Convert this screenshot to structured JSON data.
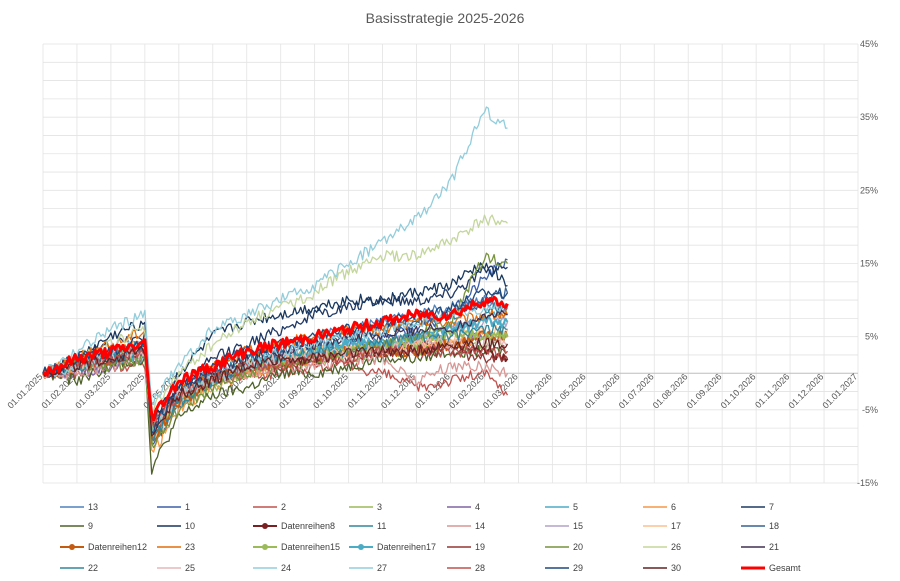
{
  "chart_data": {
    "type": "line",
    "title": "Basisstrategie 2025-2026",
    "x_axis": {
      "ticks": [
        "01.01.2025",
        "01.02.2025",
        "01.03.2025",
        "01.04.2025",
        "01.05.2025",
        "01.06.2025",
        "01.07.2025",
        "01.08.2025",
        "01.09.2025",
        "01.10.2025",
        "01.11.2025",
        "01.12.2025",
        "01.01.2026",
        "01.02.2026",
        "01.03.2026",
        "01.04.2026",
        "01.05.2026",
        "01.06.2026",
        "01.07.2026",
        "01.08.2026",
        "01.09.2026",
        "01.10.2026",
        "01.11.2026",
        "01.12.2026",
        "01.01.2027"
      ]
    },
    "y_axis": {
      "position": "right",
      "ylim": [
        -15,
        45
      ],
      "ticks": [
        45,
        35,
        25,
        15,
        5,
        -5,
        -15
      ],
      "tick_labels": [
        "45%",
        "35%",
        "25%",
        "15%",
        "5%",
        "-5%",
        "-15%"
      ]
    },
    "grid": true,
    "legend_position": "bottom",
    "x_key_dates": [
      "01.01.2025",
      "01.02.2025",
      "01.03.2025",
      "01.04.2025",
      "07.04.2025",
      "01.05.2025",
      "01.06.2025",
      "01.07.2025",
      "01.08.2025",
      "01.09.2025",
      "01.10.2025",
      "01.11.2025",
      "01.12.2025",
      "01.01.2026",
      "01.02.2026",
      "20.02.2026"
    ],
    "series": [
      {
        "name": "13",
        "color": "#4f81bd",
        "width": 1.3,
        "marker": false,
        "values": [
          0,
          1,
          3,
          4,
          -8,
          -3,
          1,
          3,
          3,
          5,
          6,
          7,
          8,
          9,
          10,
          9
        ]
      },
      {
        "name": "1",
        "color": "#3b5ea8",
        "width": 1.3,
        "marker": false,
        "values": [
          0,
          1,
          2,
          3,
          -10,
          -4,
          -1,
          1,
          2,
          3,
          4,
          5,
          6,
          8,
          13,
          15.5
        ]
      },
      {
        "name": "2",
        "color": "#c0504d",
        "width": 1.3,
        "marker": false,
        "values": [
          0,
          0,
          1,
          1,
          -6,
          -3,
          -1,
          0,
          0,
          1,
          1,
          0,
          -2,
          -1,
          0,
          -3
        ]
      },
      {
        "name": "3",
        "color": "#9bbb59",
        "width": 1.3,
        "marker": false,
        "values": [
          0,
          1,
          2,
          3,
          -9,
          -4,
          -2,
          0,
          1,
          2,
          2,
          3,
          3,
          4,
          4,
          5
        ]
      },
      {
        "name": "4",
        "color": "#8064a2",
        "width": 1.3,
        "marker": false,
        "values": [
          0,
          0,
          1,
          2,
          -7,
          -3,
          -1,
          1,
          2,
          2,
          3,
          3,
          4,
          4,
          5,
          5
        ]
      },
      {
        "name": "5",
        "color": "#4bacc6",
        "width": 1.3,
        "marker": false,
        "values": [
          0,
          1,
          2,
          2,
          -8,
          -3,
          -1,
          1,
          2,
          3,
          4,
          4,
          5,
          6,
          8,
          8
        ]
      },
      {
        "name": "6",
        "color": "#f79646",
        "width": 1.3,
        "marker": false,
        "values": [
          0,
          1,
          3,
          4,
          -11,
          -5,
          -2,
          0,
          1,
          2,
          3,
          3,
          4,
          4,
          5,
          5
        ]
      },
      {
        "name": "7",
        "color": "#1f3864",
        "width": 1.3,
        "marker": false,
        "values": [
          0,
          2,
          4,
          5,
          -8,
          -2,
          2,
          4,
          6,
          8,
          9,
          10,
          10,
          11,
          14,
          14.5
        ]
      },
      {
        "name": "9",
        "color": "#4f6228",
        "width": 1.3,
        "marker": false,
        "values": [
          0,
          -1,
          1,
          2,
          -13,
          -6,
          -3,
          -2,
          0,
          0,
          1,
          2,
          2,
          3,
          3,
          3
        ]
      },
      {
        "name": "10",
        "color": "#17375e",
        "width": 1.3,
        "marker": false,
        "values": [
          0,
          2,
          5,
          7,
          -7,
          0,
          5,
          7,
          8,
          9,
          10,
          10,
          11,
          12,
          15,
          12
        ]
      },
      {
        "name": "Datenreihen8",
        "color": "#7b2020",
        "width": 2.0,
        "marker": true,
        "values": [
          0,
          1,
          2,
          3,
          -8,
          -3,
          -1,
          1,
          2,
          2,
          3,
          3,
          4,
          4,
          3,
          2
        ]
      },
      {
        "name": "11",
        "color": "#31859c",
        "width": 1.3,
        "marker": false,
        "values": [
          0,
          1,
          3,
          4,
          -9,
          -4,
          0,
          2,
          3,
          4,
          5,
          6,
          7,
          8,
          9,
          9
        ]
      },
      {
        "name": "14",
        "color": "#d99694",
        "width": 1.3,
        "marker": false,
        "values": [
          0,
          0,
          1,
          2,
          -7,
          -3,
          -1,
          0,
          1,
          1,
          2,
          2,
          -1,
          1,
          1,
          0
        ]
      },
      {
        "name": "15",
        "color": "#b3a2c7",
        "width": 1.3,
        "marker": false,
        "values": [
          0,
          1,
          2,
          3,
          -8,
          -3,
          0,
          1,
          2,
          3,
          3,
          4,
          5,
          6,
          7,
          7
        ]
      },
      {
        "name": "17",
        "color": "#fac08f",
        "width": 1.3,
        "marker": false,
        "values": [
          0,
          1,
          2,
          3,
          -9,
          -4,
          -1,
          1,
          2,
          3,
          3,
          4,
          4,
          5,
          6,
          6
        ]
      },
      {
        "name": "18",
        "color": "#376092",
        "width": 1.3,
        "marker": false,
        "values": [
          0,
          1,
          2,
          4,
          -8,
          -3,
          0,
          2,
          3,
          4,
          5,
          6,
          7,
          8,
          10,
          11
        ]
      },
      {
        "name": "Datenreihen12",
        "color": "#c55a11",
        "width": 2.0,
        "marker": true,
        "values": [
          0,
          1,
          2,
          3,
          -9,
          -4,
          -1,
          1,
          1,
          2,
          3,
          3,
          3,
          4,
          5,
          5
        ]
      },
      {
        "name": "23",
        "color": "#e46c0a",
        "width": 1.3,
        "marker": false,
        "values": [
          0,
          2,
          4,
          6,
          -9,
          -3,
          1,
          3,
          4,
          5,
          6,
          6,
          7,
          7,
          8,
          8
        ]
      },
      {
        "name": "Datenreihen15",
        "color": "#9bbb59",
        "width": 2.0,
        "marker": true,
        "values": [
          0,
          1,
          2,
          3,
          -8,
          -3,
          -1,
          1,
          2,
          3,
          3,
          4,
          4,
          5,
          5,
          5
        ]
      },
      {
        "name": "Datenreihen17",
        "color": "#4bacc6",
        "width": 2.0,
        "marker": true,
        "values": [
          0,
          1,
          2,
          3,
          -8,
          -3,
          -1,
          1,
          2,
          3,
          4,
          4,
          5,
          6,
          7,
          7
        ]
      },
      {
        "name": "19",
        "color": "#953735",
        "width": 1.3,
        "marker": false,
        "values": [
          0,
          1,
          2,
          3,
          -8,
          -3,
          -1,
          1,
          1,
          2,
          2,
          3,
          3,
          3,
          2,
          2
        ]
      },
      {
        "name": "20",
        "color": "#77933c",
        "width": 1.3,
        "marker": false,
        "values": [
          0,
          1,
          1,
          2,
          -10,
          -5,
          -2,
          0,
          1,
          2,
          3,
          4,
          5,
          7,
          16,
          15
        ]
      },
      {
        "name": "26",
        "color": "#c3d69b",
        "width": 1.3,
        "marker": false,
        "values": [
          0,
          2,
          4,
          6,
          -5,
          0,
          4,
          7,
          9,
          11,
          14,
          16,
          16,
          18,
          21,
          20.5
        ]
      },
      {
        "name": "21",
        "color": "#403152",
        "width": 1.3,
        "marker": false,
        "values": [
          0,
          1,
          2,
          3,
          -7,
          -2,
          0,
          2,
          3,
          4,
          5,
          5,
          6,
          6,
          8,
          8
        ]
      },
      {
        "name": "22",
        "color": "#31859c",
        "width": 1.3,
        "marker": false,
        "values": [
          0,
          1,
          2,
          3,
          -9,
          -4,
          -1,
          1,
          2,
          3,
          3,
          4,
          5,
          5,
          6,
          6
        ]
      },
      {
        "name": "25",
        "color": "#e6b9b8",
        "width": 1.3,
        "marker": false,
        "values": [
          0,
          1,
          2,
          3,
          -8,
          -3,
          -1,
          1,
          2,
          2,
          3,
          3,
          4,
          4,
          4,
          4
        ]
      },
      {
        "name": "24",
        "color": "#93cddd",
        "width": 1.3,
        "marker": false,
        "values": [
          0,
          1,
          3,
          4,
          -8,
          -3,
          -1,
          1,
          3,
          4,
          5,
          6,
          7,
          8,
          9,
          9
        ]
      },
      {
        "name": "27",
        "color": "#92cddc",
        "width": 1.3,
        "marker": false,
        "values": [
          0,
          3,
          6,
          8,
          -4,
          1,
          6,
          8,
          10,
          12,
          15,
          18,
          21,
          26,
          36,
          33.5
        ]
      },
      {
        "name": "28",
        "color": "#c0504d",
        "width": 1.3,
        "marker": false,
        "values": [
          0,
          1,
          2,
          3,
          -7,
          -3,
          -1,
          1,
          1,
          2,
          2,
          3,
          3,
          3,
          3,
          3
        ]
      },
      {
        "name": "29",
        "color": "#1f497d",
        "width": 1.3,
        "marker": false,
        "values": [
          0,
          2,
          3,
          4,
          -8,
          -2,
          1,
          3,
          4,
          5,
          6,
          7,
          8,
          9,
          11,
          11
        ]
      },
      {
        "name": "30",
        "color": "#632423",
        "width": 1.3,
        "marker": false,
        "values": [
          0,
          1,
          2,
          3,
          -8,
          -3,
          -1,
          1,
          2,
          2,
          3,
          3,
          3,
          4,
          4,
          4
        ]
      },
      {
        "name": "Gesamt",
        "color": "#ff0000",
        "width": 3.0,
        "marker": false,
        "values": [
          0,
          2,
          3,
          4,
          -6,
          -1,
          1,
          3,
          4,
          5,
          6,
          7,
          8,
          8,
          10,
          9.5
        ]
      }
    ]
  }
}
